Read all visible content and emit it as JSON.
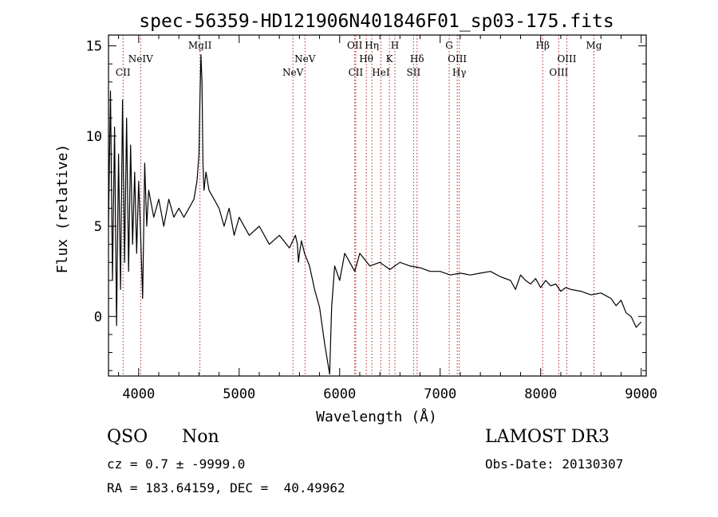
{
  "chart_data": {
    "type": "line",
    "title": "spec-56359-HD121906N401846F01_sp03-175.fits",
    "xlabel": "Wavelength (Å)",
    "ylabel": "Flux (relative)",
    "xlim": [
      3700,
      9050
    ],
    "ylim": [
      -3.3,
      15.6
    ],
    "xticks": [
      4000,
      5000,
      6000,
      7000,
      8000,
      9000
    ],
    "yticks": [
      0,
      5,
      10,
      15
    ],
    "grid": false,
    "series": [
      {
        "x": [
          3700,
          3720,
          3740,
          3760,
          3780,
          3800,
          3820,
          3840,
          3860,
          3880,
          3900,
          3920,
          3940,
          3960,
          3980,
          4000,
          4020,
          4040,
          4060,
          4080,
          4100,
          4150,
          4200,
          4250,
          4300,
          4350,
          4400,
          4450,
          4500,
          4550,
          4580,
          4600,
          4610,
          4620,
          4630,
          4640,
          4650,
          4670,
          4700,
          4750,
          4800,
          4850,
          4900,
          4950,
          5000,
          5100,
          5200,
          5300,
          5400,
          5500,
          5560,
          5580,
          5590,
          5600,
          5620,
          5650,
          5700,
          5750,
          5800,
          5850,
          5880,
          5900,
          5920,
          5950,
          6000,
          6050,
          6100,
          6150,
          6200,
          6300,
          6400,
          6500,
          6600,
          6700,
          6800,
          6900,
          7000,
          7100,
          7200,
          7300,
          7400,
          7500,
          7600,
          7700,
          7750,
          7800,
          7850,
          7900,
          7950,
          8000,
          8050,
          8100,
          8150,
          8200,
          8250,
          8300,
          8400,
          8500,
          8600,
          8700,
          8750,
          8800,
          8850,
          8900,
          8950,
          9000
        ],
        "y": [
          5.0,
          12.5,
          2.0,
          10.5,
          -0.5,
          9.0,
          1.5,
          12.0,
          3.0,
          11.0,
          2.5,
          9.5,
          4.0,
          8.0,
          3.5,
          7.5,
          4.5,
          1.0,
          8.5,
          5.0,
          7.0,
          5.5,
          6.5,
          5.0,
          6.5,
          5.5,
          6.0,
          5.5,
          6.0,
          6.5,
          7.5,
          9.0,
          12.0,
          14.5,
          13.0,
          8.5,
          7.0,
          8.0,
          7.0,
          6.5,
          6.0,
          5.0,
          6.0,
          4.5,
          5.5,
          4.5,
          5.0,
          4.0,
          4.5,
          3.8,
          4.5,
          4.0,
          3.0,
          3.5,
          4.2,
          3.5,
          2.8,
          1.5,
          0.5,
          -1.5,
          -2.5,
          -3.2,
          0.5,
          2.8,
          2.0,
          3.5,
          3.0,
          2.5,
          3.5,
          2.8,
          3.0,
          2.6,
          3.0,
          2.8,
          2.7,
          2.5,
          2.5,
          2.3,
          2.4,
          2.3,
          2.4,
          2.5,
          2.2,
          2.0,
          1.5,
          2.3,
          2.0,
          1.8,
          2.1,
          1.6,
          2.0,
          1.7,
          1.8,
          1.4,
          1.6,
          1.5,
          1.4,
          1.2,
          1.3,
          1.0,
          0.6,
          0.9,
          0.2,
          0.0,
          -0.6,
          -0.3
        ]
      }
    ],
    "lines": [
      {
        "label": "CII",
        "x": 3845,
        "row": 2
      },
      {
        "label": "NeIV",
        "x": 4020,
        "row": 1
      },
      {
        "label": "MgII",
        "x": 4610,
        "row": 0
      },
      {
        "label": "NeV",
        "x": 5535,
        "row": 2
      },
      {
        "label": "NeV",
        "x": 5655,
        "row": 1
      },
      {
        "label": "OII",
        "x": 6150,
        "row": 0
      },
      {
        "label": "CII",
        "x": 6160,
        "row": 2
      },
      {
        "label": "Hθ",
        "x": 6265,
        "row": 1
      },
      {
        "label": "Hη",
        "x": 6320,
        "row": 0
      },
      {
        "label": "HeI",
        "x": 6410,
        "row": 2
      },
      {
        "label": "K",
        "x": 6495,
        "row": 1
      },
      {
        "label": "H",
        "x": 6550,
        "row": 0
      },
      {
        "label": "SII",
        "x": 6735,
        "row": 2
      },
      {
        "label": "Hδ",
        "x": 6770,
        "row": 1
      },
      {
        "label": "G",
        "x": 7090,
        "row": 0
      },
      {
        "label": "OIII",
        "x": 7170,
        "row": 1
      },
      {
        "label": "Hγ",
        "x": 7190,
        "row": 2
      },
      {
        "label": "Hβ",
        "x": 8020,
        "row": 0
      },
      {
        "label": "OIII",
        "x": 8180,
        "row": 2
      },
      {
        "label": "OIII",
        "x": 8260,
        "row": 1
      },
      {
        "label": "Mg",
        "x": 8530,
        "row": 0
      }
    ]
  },
  "info": {
    "class": "QSO",
    "subclass": "Non",
    "survey": "LAMOST DR3",
    "cz": "cz = 0.7 ± -9999.0",
    "obs_date": "Obs-Date: 20130307",
    "coords": "RA = 183.64159, DEC =  40.49962"
  }
}
